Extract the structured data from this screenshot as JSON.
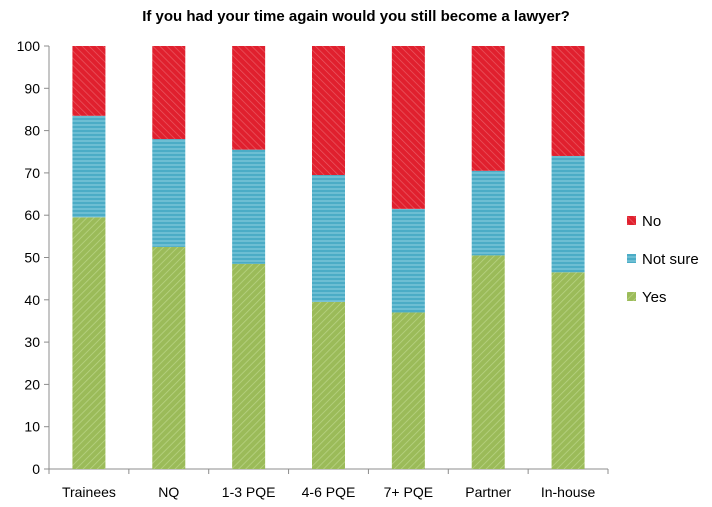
{
  "chart_data": {
    "type": "bar",
    "stacked": true,
    "title": "If you had your time again would you still become a lawyer?",
    "categories": [
      "Trainees",
      "NQ",
      "1-3 PQE",
      "4-6 PQE",
      "7+ PQE",
      "Partner",
      "In-house"
    ],
    "series": [
      {
        "name": "Yes",
        "color": "#9bbb59",
        "values": [
          59.5,
          52.5,
          48.5,
          39.5,
          37,
          50.5,
          46.5
        ]
      },
      {
        "name": "Not sure",
        "color": "#4bacc6",
        "values": [
          24,
          25.5,
          27,
          30,
          24.5,
          20,
          27.5
        ]
      },
      {
        "name": "No",
        "color": "#e0202e",
        "values": [
          16.5,
          22,
          24.5,
          30.5,
          38.5,
          29.5,
          26
        ]
      }
    ],
    "yticks": [
      "0",
      "10",
      "20",
      "30",
      "40",
      "50",
      "60",
      "70",
      "80",
      "90",
      "100"
    ],
    "ylim": [
      0,
      100
    ],
    "grid": false,
    "legend_position": "right",
    "legend_order": [
      "No",
      "Not sure",
      "Yes"
    ]
  }
}
